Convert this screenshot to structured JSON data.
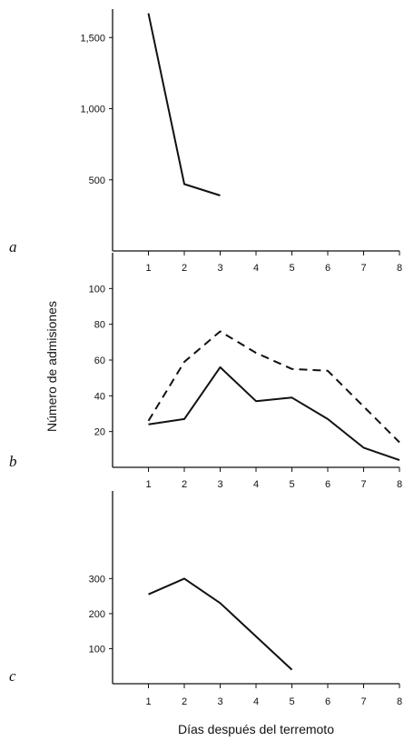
{
  "chart_data": [
    {
      "panel": "a",
      "type": "line",
      "x_ticks": [
        "1",
        "2",
        "3",
        "4",
        "5",
        "6",
        "7",
        "8"
      ],
      "y_ticks": [
        "500",
        "1,000",
        "1,500"
      ],
      "ylim": [
        0,
        1700
      ],
      "xlim": [
        0,
        8
      ],
      "series": [
        {
          "style": "solid",
          "x": [
            1,
            2,
            3
          ],
          "y": [
            1670,
            470,
            390
          ]
        }
      ]
    },
    {
      "panel": "b",
      "type": "line",
      "x_ticks": [
        "1",
        "2",
        "3",
        "4",
        "5",
        "6",
        "7",
        "8"
      ],
      "y_ticks": [
        "20",
        "40",
        "60",
        "80",
        "100"
      ],
      "ylim": [
        0,
        120
      ],
      "xlim": [
        0,
        8
      ],
      "series": [
        {
          "style": "dashed",
          "x": [
            1,
            2,
            3,
            4,
            5,
            6,
            7,
            8
          ],
          "y": [
            26,
            59,
            76,
            64,
            55,
            54,
            34,
            14
          ]
        },
        {
          "style": "solid",
          "x": [
            1,
            2,
            3,
            4,
            5,
            6,
            7,
            8
          ],
          "y": [
            24,
            27,
            56,
            37,
            39,
            27,
            11,
            4
          ]
        }
      ]
    },
    {
      "panel": "c",
      "type": "line",
      "x_ticks": [
        "1",
        "2",
        "3",
        "4",
        "5",
        "6",
        "7",
        "8"
      ],
      "y_ticks": [
        "100",
        "200",
        "300"
      ],
      "ylim": [
        0,
        550
      ],
      "xlim": [
        0,
        8
      ],
      "series": [
        {
          "style": "solid",
          "x": [
            1,
            2,
            3,
            4,
            5
          ],
          "y": [
            255,
            300,
            230,
            135,
            40
          ]
        }
      ]
    }
  ],
  "xlabel": "Días después del terremoto",
  "ylabel": "Número de admisiones",
  "panel_letters": {
    "a": "a",
    "b": "b",
    "c": "c"
  }
}
